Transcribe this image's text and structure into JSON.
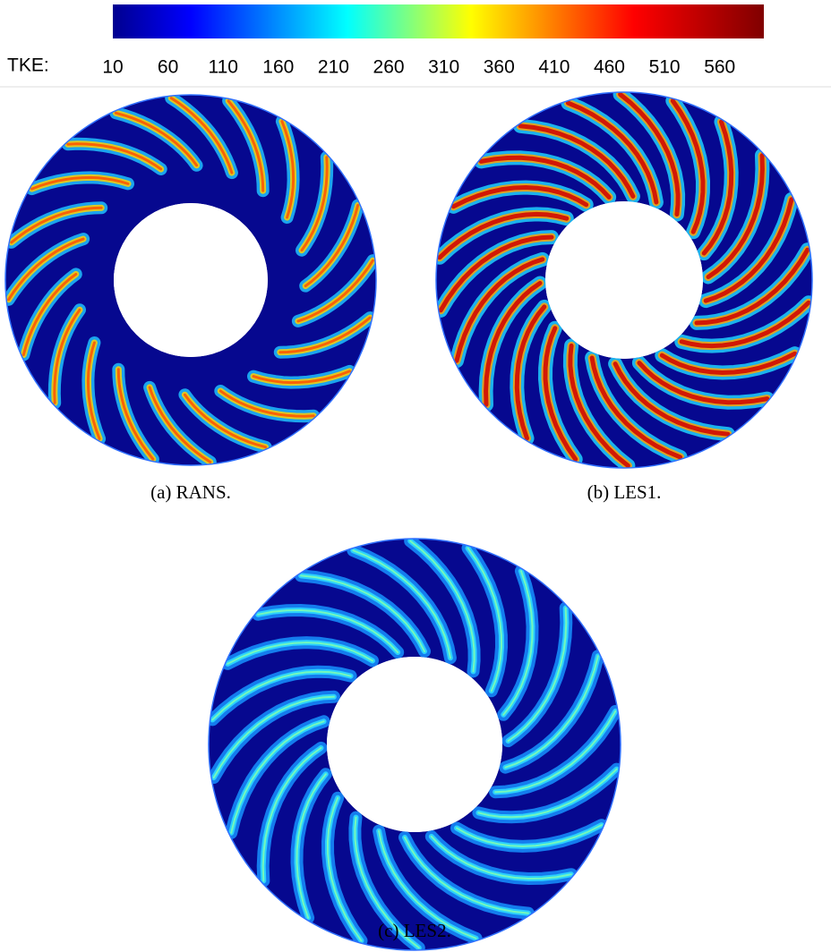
{
  "colorbar": {
    "label": "TKE:",
    "lim": [
      10,
      600
    ],
    "ticks": [
      10,
      60,
      110,
      160,
      210,
      260,
      310,
      360,
      410,
      460,
      510,
      560
    ]
  },
  "panels": [
    {
      "caption": "(a) RANS."
    },
    {
      "caption": "(b) LES1."
    },
    {
      "caption": "(c) LES2."
    }
  ]
}
